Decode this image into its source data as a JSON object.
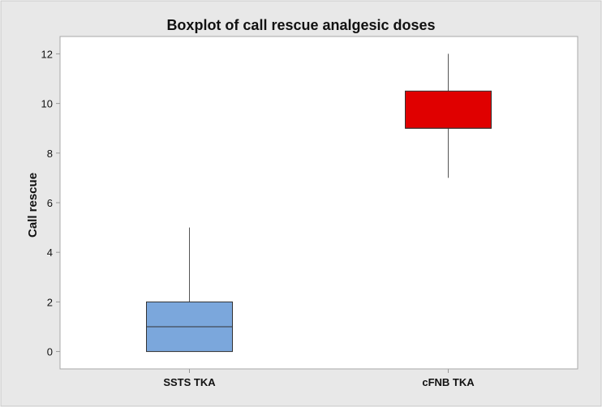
{
  "chart_data": {
    "type": "boxplot",
    "title": "Boxplot of call rescue analgesic doses",
    "xlabel": "",
    "ylabel": "Call rescue",
    "ylim": [
      -0.7,
      12.7
    ],
    "yticks": [
      0,
      2,
      4,
      6,
      8,
      10,
      12
    ],
    "grid": false,
    "categories": [
      "SSTS TKA",
      "cFNB TKA"
    ],
    "boxes": [
      {
        "category": "SSTS TKA",
        "min": 0,
        "q1": 0,
        "median": 1,
        "q3": 2,
        "max": 5,
        "color": "#7ba7dc"
      },
      {
        "category": "cFNB TKA",
        "min": 7,
        "q1": 9,
        "median": 9,
        "q3": 10.5,
        "max": 12,
        "color": "#e00000"
      }
    ]
  },
  "colors": {
    "outer_background": "#e8e8e8",
    "plot_background": "#ffffff",
    "axis": "#999999",
    "text": "#111111"
  }
}
